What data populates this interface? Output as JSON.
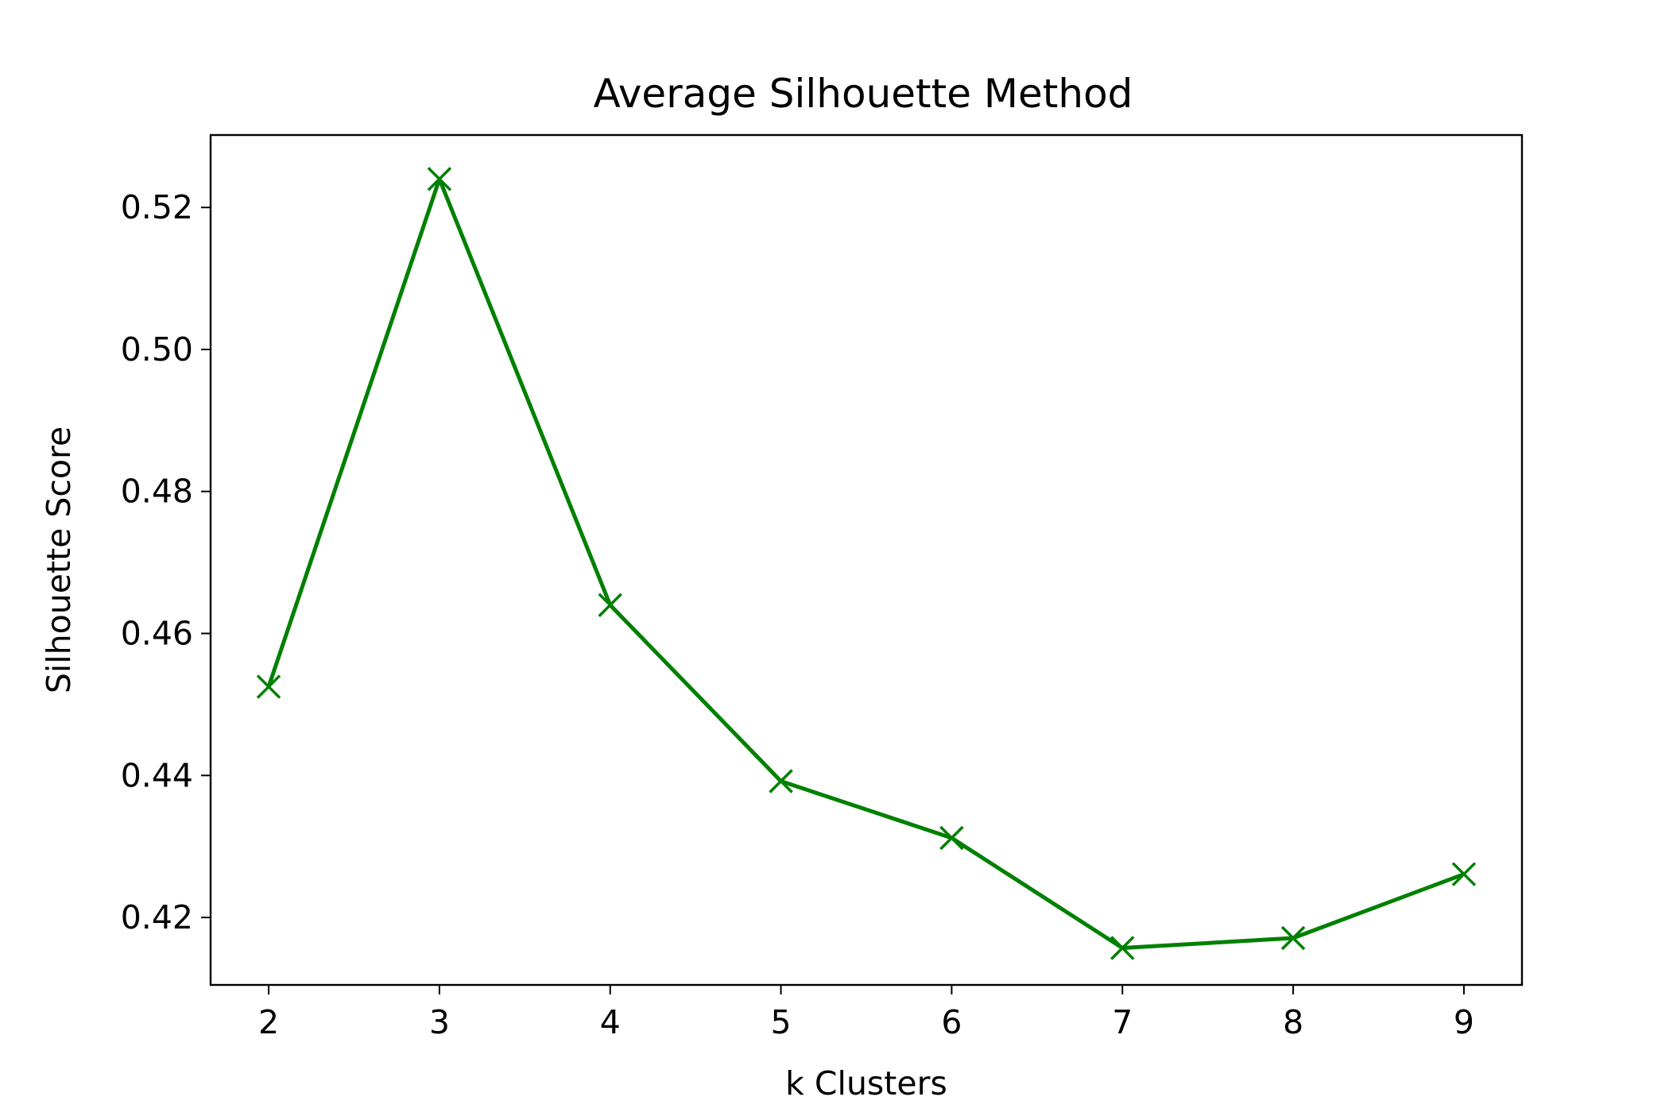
{
  "chart_data": {
    "type": "line",
    "title": "Average Silhouette Method",
    "xlabel": "k Clusters",
    "ylabel": "Silhouette Score",
    "x": [
      2,
      3,
      4,
      5,
      6,
      7,
      8,
      9
    ],
    "series": [
      {
        "values": [
          0.4525,
          0.524,
          0.464,
          0.4392,
          0.4312,
          0.4157,
          0.4171,
          0.4261
        ],
        "color": "#008000",
        "marker": "x"
      }
    ],
    "xlim": [
      1.66,
      9.34
    ],
    "ylim": [
      0.4105,
      0.5302
    ],
    "xticks": [
      "2",
      "3",
      "4",
      "5",
      "6",
      "7",
      "8",
      "9"
    ],
    "yticks": [
      "0.42",
      "0.44",
      "0.46",
      "0.48",
      "0.50",
      "0.52"
    ],
    "grid": false,
    "legend": "none"
  }
}
